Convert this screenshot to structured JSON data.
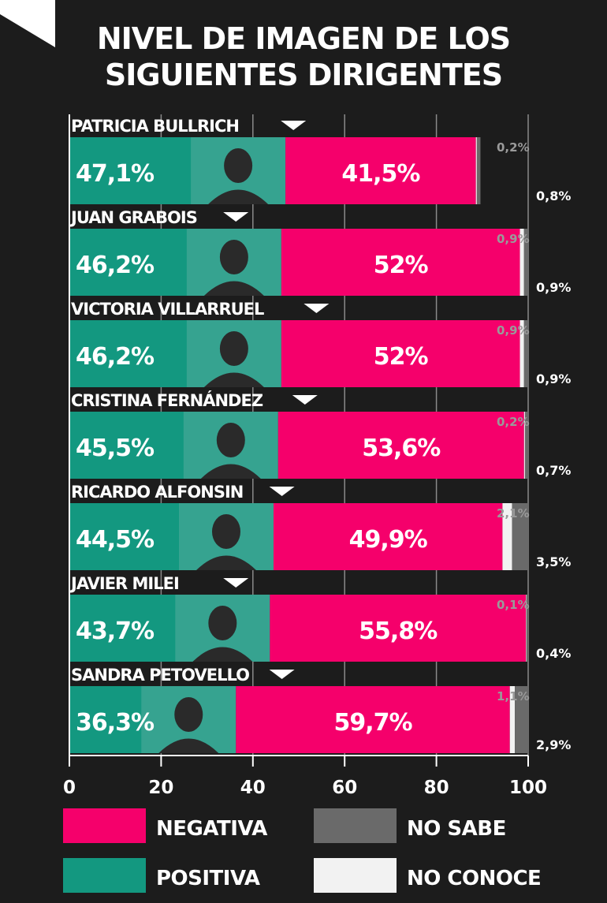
{
  "title_lines": [
    "NIVEL DE IMAGEN DE LOS",
    "SIGUIENTES DIRIGENTES"
  ],
  "colors": {
    "positiva": "#139880",
    "negativa": "#f5006b",
    "no_sabe": "#6a6a6a",
    "no_conoce": "#f2f2f2",
    "background": "#1c1c1c"
  },
  "chart_data": {
    "type": "bar",
    "orientation": "horizontal",
    "stacked": true,
    "title": "NIVEL DE IMAGEN DE LOS SIGUIENTES DIRIGENTES",
    "xlim": [
      0,
      100
    ],
    "x_ticks": [
      0,
      20,
      40,
      60,
      80,
      100
    ],
    "grid": true,
    "legend_position": "bottom",
    "categories": [
      "PATRICIA BULLRICH",
      "JUAN GRABOIS",
      "VICTORIA VILLARRUEL",
      "CRISTINA FERNÁNDEZ",
      "RICARDO ALFONSIN",
      "JAVIER MILEI",
      "SANDRA PETOVELLO"
    ],
    "series": [
      {
        "name": "POSITIVA",
        "values": [
          47.1,
          46.2,
          46.2,
          45.5,
          44.5,
          43.7,
          36.3
        ],
        "labels": [
          "47,1%",
          "46,2%",
          "46,2%",
          "45,5%",
          "44,5%",
          "43,7%",
          "36,3%"
        ]
      },
      {
        "name": "NEGATIVA",
        "values": [
          41.5,
          52,
          52,
          53.6,
          49.9,
          55.8,
          59.7
        ],
        "labels": [
          "41,5%",
          "52%",
          "52%",
          "53,6%",
          "49,9%",
          "55,8%",
          "59,7%"
        ]
      },
      {
        "name": "NO CONOCE",
        "values": [
          0.2,
          0.9,
          0.9,
          0.2,
          2.1,
          0.1,
          1.1
        ],
        "labels": [
          "0,2%",
          "0,9%",
          "0,9%",
          "0,2%",
          "2,1%",
          "0,1%",
          "1,1%"
        ]
      },
      {
        "name": "NO SABE",
        "values": [
          0.8,
          0.9,
          0.9,
          0.7,
          3.5,
          0.4,
          2.9
        ],
        "labels": [
          "0,8%",
          "0,9%",
          "0,9%",
          "0,7%",
          "3,5%",
          "0,4%",
          "2,9%"
        ]
      }
    ]
  },
  "legend": [
    {
      "name": "NEGATIVA",
      "color": "#f5006b"
    },
    {
      "name": "NO SABE",
      "color": "#6a6a6a"
    },
    {
      "name": "POSITIVA",
      "color": "#139880"
    },
    {
      "name": "NO CONOCE",
      "color": "#f2f2f2"
    }
  ]
}
